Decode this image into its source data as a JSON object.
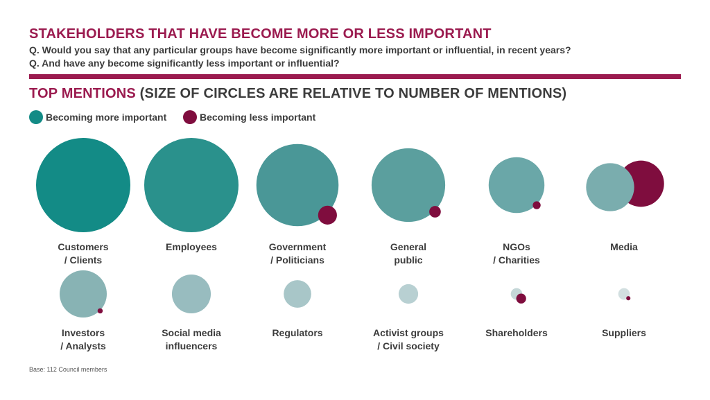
{
  "header": {
    "title": "STAKEHOLDERS THAT HAVE BECOME MORE OR LESS IMPORTANT",
    "question_1": "Q. Would you say that any particular groups have become significantly more important or influential, in recent years?",
    "question_2": "Q. And have any become significantly less important or influential?"
  },
  "subtitle": {
    "part_1": "TOP MENTIONS ",
    "part_2": "(SIZE OF CIRCLES ARE RELATIVE TO NUMBER OF MENTIONS)"
  },
  "legend": {
    "more_label": "Becoming more important",
    "less_label": "Becoming less important"
  },
  "colors": {
    "accent": "#9b1b4f",
    "less": "#7f0d3e",
    "text": "#3c3c3c"
  },
  "footer": {
    "base_note": "Base: 112 Council members"
  },
  "chart_data": {
    "type": "bubble",
    "title": "TOP MENTIONS (SIZE OF CIRCLES ARE RELATIVE TO NUMBER OF MENTIONS)",
    "series": [
      {
        "name": "Becoming more important",
        "color": "#138b86"
      },
      {
        "name": "Becoming less important",
        "color": "#7f0d3e"
      }
    ],
    "categories": [
      {
        "label": [
          "Customers",
          "/ Clients"
        ],
        "more": 100,
        "less": 0,
        "color": "#138b86"
      },
      {
        "label": [
          "Employees"
        ],
        "more": 100,
        "less": 0,
        "color": "#2a918c"
      },
      {
        "label": [
          "Government",
          "/ Politicians"
        ],
        "more": 76,
        "less": 4,
        "color": "#4a9797"
      },
      {
        "label": [
          "General",
          "public"
        ],
        "more": 61,
        "less": 1.5,
        "color": "#5b9f9e"
      },
      {
        "label": [
          "NGOs",
          "/ Charities"
        ],
        "more": 35,
        "less": 0.7,
        "color": "#6aa7a8"
      },
      {
        "label": [
          "Media"
        ],
        "more": 26,
        "less": 24,
        "color": "#7aadae"
      },
      {
        "label": [
          "Investors",
          "/ Analysts"
        ],
        "more": 25,
        "less": 0.3,
        "color": "#88b3b4"
      },
      {
        "label": [
          "Social media",
          "influencers"
        ],
        "more": 17,
        "less": 0,
        "color": "#98bcbf"
      },
      {
        "label": [
          "Regulators"
        ],
        "more": 8.5,
        "less": 0,
        "color": "#a8c6c8"
      },
      {
        "label": [
          "Activist groups",
          "/ Civil society"
        ],
        "more": 4.3,
        "less": 0,
        "color": "#b8d0d2"
      },
      {
        "label": [
          "Shareholders"
        ],
        "more": 1.5,
        "less": 1.1,
        "color": "#c5d7d8"
      },
      {
        "label": [
          "Suppliers"
        ],
        "more": 1.5,
        "less": 0.2,
        "color": "#d2dfe0"
      }
    ]
  }
}
